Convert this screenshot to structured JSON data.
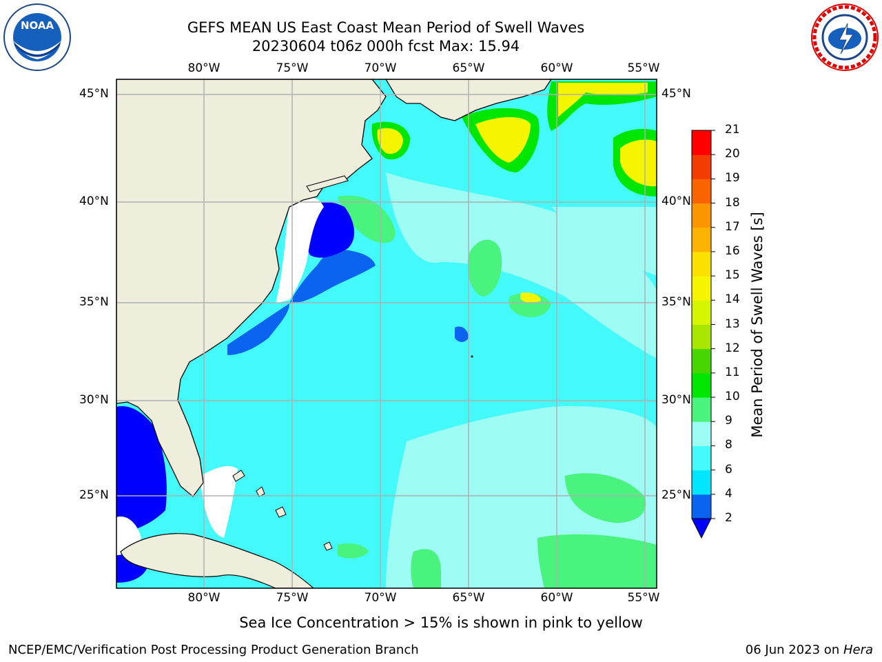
{
  "header": {
    "title_line1": "GEFS MEAN US East Coast Mean Period of Swell Waves",
    "title_line2": "20230604 t06z 000h fcst   Max: 15.94"
  },
  "logos": {
    "left": {
      "icon": "noaa-logo",
      "text": "NOAA",
      "ring_text": "NATIONAL OCEANIC AND ATMOSPHERIC ADMINISTRATION · U.S. DEPARTMENT OF COMMERCE"
    },
    "right": {
      "icon": "nws-logo",
      "ring_text": "NATIONAL WEATHER SERVICE"
    }
  },
  "map": {
    "lon_labels": [
      "80°W",
      "75°W",
      "70°W",
      "65°W",
      "60°W",
      "55°W"
    ],
    "lat_labels": [
      "45°N",
      "40°N",
      "35°N",
      "30°N",
      "25°N"
    ],
    "colors": {
      "land": "#efeedd",
      "coast": "#000000",
      "grid": "#b0b0b0",
      "white_gap": "#ffffff"
    }
  },
  "colorbar": {
    "label": "Mean Period of Swell Waves [s]",
    "ticks": [
      "2",
      "4",
      "6",
      "8",
      "9",
      "10",
      "11",
      "12",
      "13",
      "14",
      "15",
      "16",
      "17",
      "18",
      "19",
      "20",
      "21"
    ],
    "colors": [
      "#0a64f0",
      "#00e6ff",
      "#43f9f9",
      "#9dfcf3",
      "#49f37e",
      "#00e600",
      "#49d600",
      "#a6e600",
      "#d6f500",
      "#f5f500",
      "#fbe100",
      "#fab400",
      "#fb9600",
      "#fa6400",
      "#f53c00",
      "#ff0000"
    ],
    "extend_color": "#0000ff"
  },
  "footer": {
    "note": "Sea Ice Concentration > 15% is shown in pink to yellow",
    "credit": "NCEP/EMC/Verification Post Processing Product Generation Branch",
    "date": "06 Jun 2023 on ",
    "machine": "Hera"
  }
}
